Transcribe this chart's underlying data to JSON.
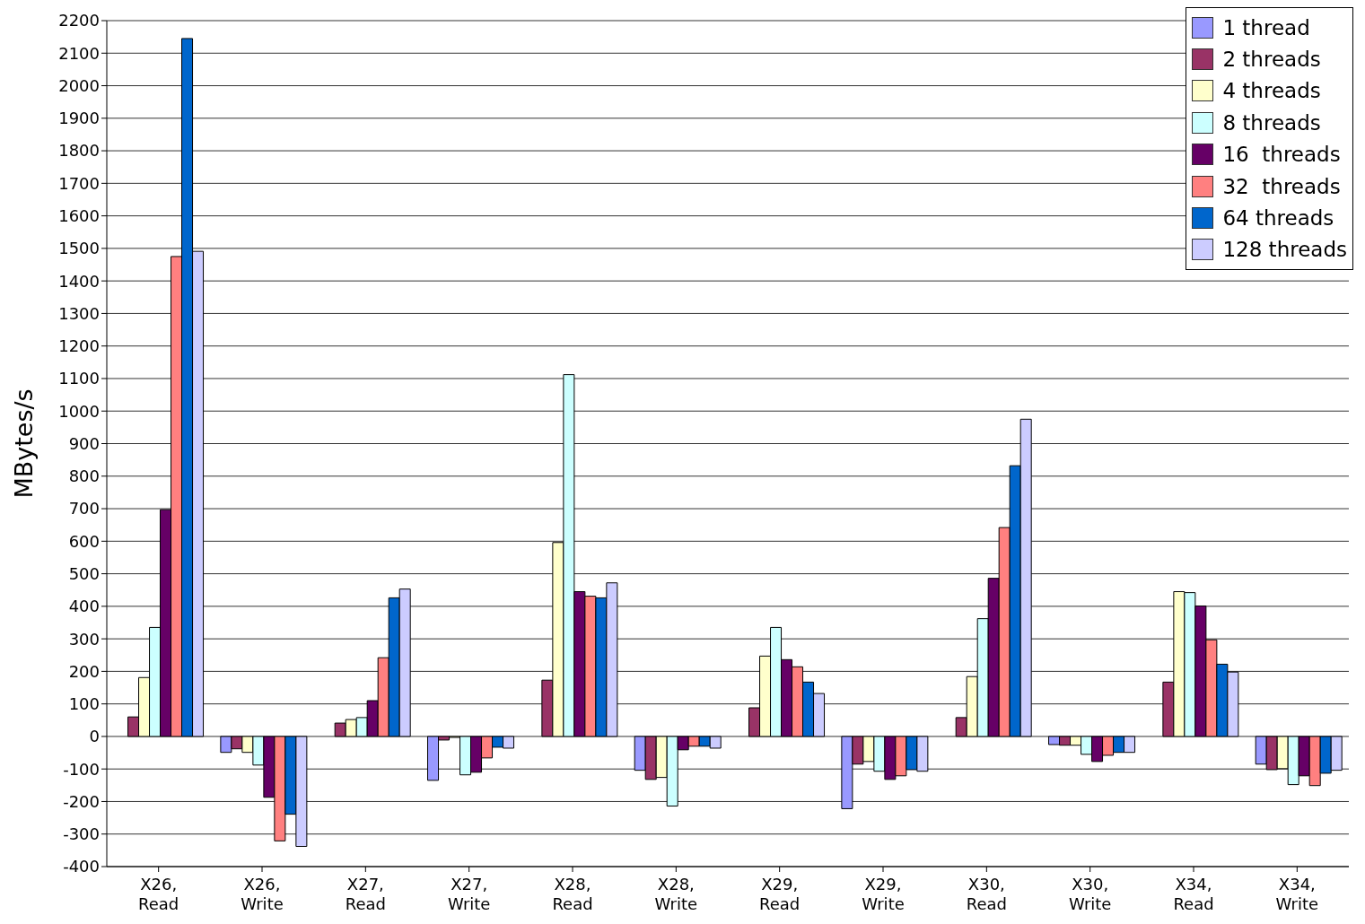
{
  "chart_data": {
    "type": "bar",
    "ylabel": "MBytes/s",
    "categories": [
      "X26, Read",
      "X26, Write",
      "X27, Read",
      "X27, Write",
      "X28, Read",
      "X28, Write",
      "X29, Read",
      "X29, Write",
      "X30, Read",
      "X30, Write",
      "X34, Read",
      "X34, Write"
    ],
    "series": [
      {
        "name": "1 thread",
        "color": "#9999ff",
        "values": [
          0,
          -49,
          0,
          -135,
          0,
          -104,
          0,
          -222,
          0,
          -25,
          0,
          -85
        ]
      },
      {
        "name": "2 threads",
        "color": "#993366",
        "values": [
          60,
          -38,
          41,
          -11,
          173,
          -132,
          88,
          -85,
          58,
          -27,
          167,
          -102
        ]
      },
      {
        "name": "4 threads",
        "color": "#ffffcc",
        "values": [
          181,
          -49,
          52,
          -3,
          596,
          -126,
          247,
          -77,
          184,
          -27,
          445,
          -99
        ]
      },
      {
        "name": "8 threads",
        "color": "#ccffff",
        "values": [
          335,
          -88,
          58,
          -118,
          1112,
          -214,
          335,
          -107,
          362,
          -55,
          442,
          -148
        ]
      },
      {
        "name": "16  threads",
        "color": "#660066",
        "values": [
          697,
          -187,
          110,
          -110,
          445,
          -41,
          236,
          -132,
          486,
          -77,
          401,
          -121
        ]
      },
      {
        "name": "32  threads",
        "color": "#ff8080",
        "values": [
          1475,
          -321,
          242,
          -66,
          431,
          -30,
          214,
          -121,
          642,
          -58,
          297,
          -151
        ]
      },
      {
        "name": "64 threads",
        "color": "#0066cc",
        "values": [
          2145,
          -239,
          426,
          -33,
          426,
          -30,
          167,
          -102,
          832,
          -49,
          222,
          -113
        ]
      },
      {
        "name": "128 threads",
        "color": "#ccccff",
        "values": [
          1491,
          -338,
          453,
          -36,
          472,
          -36,
          132,
          -107,
          975,
          -49,
          198,
          -104
        ]
      }
    ],
    "ylim": [
      -400,
      2200
    ],
    "yticks": [
      -400,
      -300,
      -200,
      -100,
      0,
      100,
      200,
      300,
      400,
      500,
      600,
      700,
      800,
      900,
      1000,
      1100,
      1200,
      1300,
      1400,
      1500,
      1600,
      1700,
      1800,
      1900,
      2000,
      2100,
      2200
    ],
    "grid": "y",
    "legend": "top right"
  }
}
